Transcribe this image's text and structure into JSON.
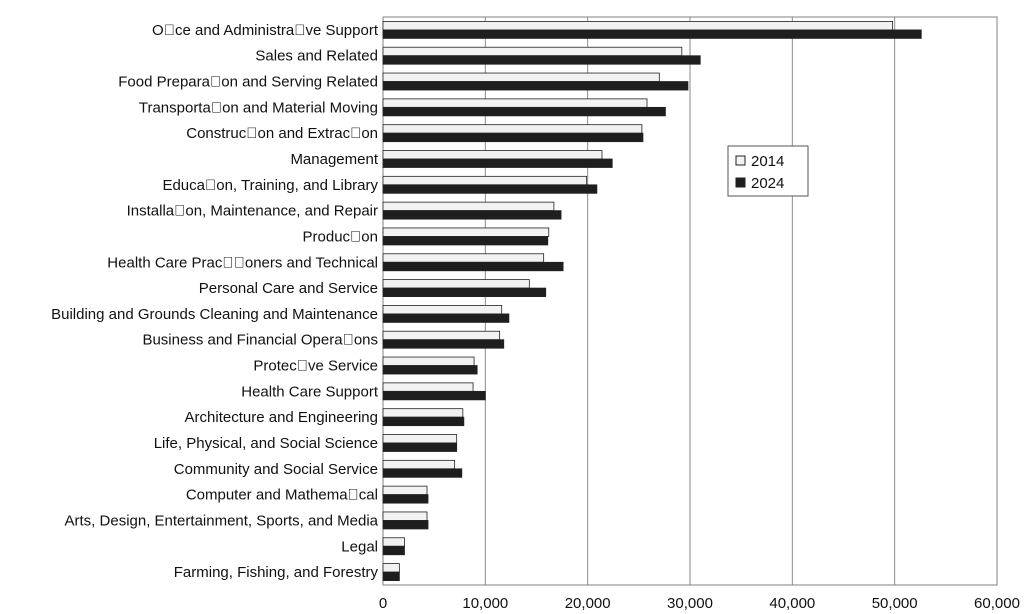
{
  "chart_data": {
    "type": "bar",
    "orientation": "horizontal",
    "categories": [
      "Oce and Administrave Support",
      "Sales and Related",
      "Food Preparaon and Serving Related",
      "Transportaon and Material Moving",
      "Construcon and Extracon",
      "Management",
      "Educaon, Training, and Library",
      "Installaon, Maintenance, and Repair",
      "Producon",
      "Health Care Praconers and Technical",
      "Personal Care and Service",
      "Building and Grounds Cleaning and Maintenance",
      "Business and Financial Operaons",
      "Protecve Service",
      "Health Care Support",
      "Architecture and Engineering",
      "Life, Physical, and Social Science",
      "Community and Social Service",
      "Computer and Mathemacal",
      "Arts, Design, Entertainment, Sports, and Media",
      "Legal",
      "Farming, Fishing, and Forestry"
    ],
    "series": [
      {
        "name": "2014",
        "color": "#f2f2f2",
        "values": [
          49800,
          29200,
          27000,
          25800,
          25300,
          21400,
          19900,
          16700,
          16200,
          15700,
          14300,
          11600,
          11400,
          8900,
          8800,
          7800,
          7200,
          7000,
          4300,
          4300,
          2100,
          1600
        ]
      },
      {
        "name": "2024",
        "color": "#1e1e1e",
        "values": [
          52600,
          31000,
          29800,
          27600,
          25400,
          22400,
          20900,
          17400,
          16100,
          17600,
          15900,
          12300,
          11800,
          9200,
          10000,
          7900,
          7200,
          7700,
          4400,
          4400,
          2100,
          1600
        ]
      }
    ],
    "xlim": [
      0,
      60000
    ],
    "xticks": [
      "0",
      "10,000",
      "20,000",
      "30,000",
      "40,000",
      "50,000",
      "60,000"
    ],
    "grid": true,
    "legend_position": "middle-right"
  }
}
